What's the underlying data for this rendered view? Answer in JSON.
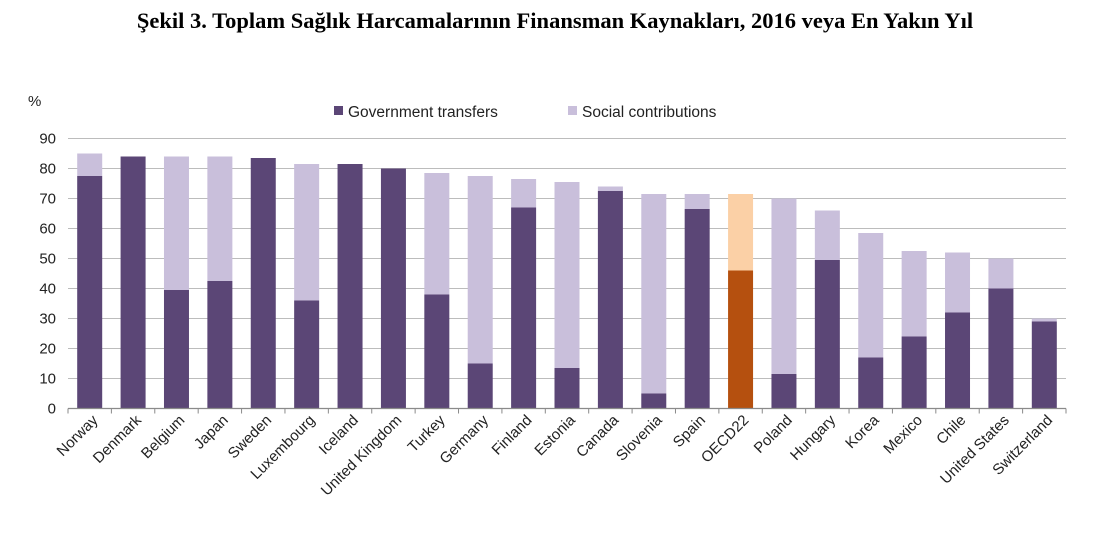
{
  "figure_title": "Şekil 3. Toplam Sağlık Harcamalarının Finansman Kaynakları, 2016 veya En Yakın Yıl",
  "chart_data": {
    "type": "bar",
    "stacked": true,
    "title": "",
    "ylabel": "%",
    "xlabel": "",
    "ylim": [
      0,
      90
    ],
    "yticks": [
      0,
      10,
      20,
      30,
      40,
      50,
      60,
      70,
      80,
      90
    ],
    "grid": true,
    "legend_position": "top",
    "categories": [
      "Norway",
      "Denmark",
      "Belgium",
      "Japan",
      "Sweden",
      "Luxembourg",
      "Iceland",
      "United Kingdom",
      "Turkey",
      "Germany",
      "Finland",
      "Estonia",
      "Canada",
      "Slovenia",
      "Spain",
      "OECD22",
      "Poland",
      "Hungary",
      "Korea",
      "Mexico",
      "Chile",
      "United States",
      "Switzerland"
    ],
    "highlight_category": "OECD22",
    "series": [
      {
        "name": "Government transfers",
        "color": "#5b4676",
        "highlight_color": "#b5500f",
        "values": [
          77.5,
          84,
          39.5,
          42.5,
          83.5,
          36,
          81.5,
          80,
          38,
          15,
          67,
          13.5,
          72.5,
          5,
          66.5,
          46,
          11.5,
          49.5,
          17,
          24,
          32,
          40,
          29
        ]
      },
      {
        "name": "Social contributions",
        "color": "#c9bfdb",
        "highlight_color": "#fbd0a6",
        "values": [
          7.5,
          0,
          44.5,
          41.5,
          0,
          45.5,
          0,
          0,
          40.5,
          62.5,
          9.5,
          62,
          1.5,
          66.5,
          5,
          25.5,
          58.5,
          16.5,
          41.5,
          28.5,
          20,
          10,
          1
        ]
      }
    ]
  }
}
